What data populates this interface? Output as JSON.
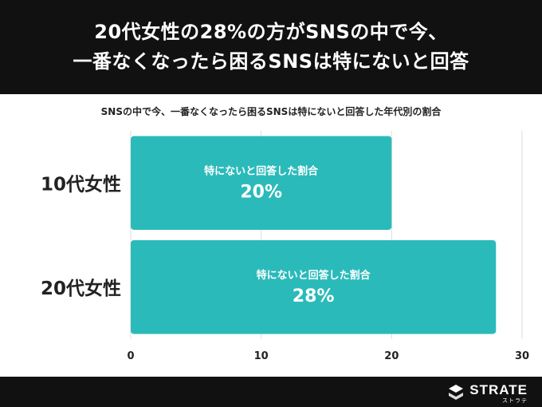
{
  "header": {
    "title_line1": "20代女性の28%の方がSNSの中で今、",
    "title_line2": "一番なくなったら困るSNSは特にないと回答"
  },
  "chart_data": {
    "type": "bar",
    "orientation": "horizontal",
    "title": "SNSの中で今、一番なくなったら困るSNSは特にないと回答した年代別の割合",
    "categories": [
      "10代女性",
      "20代女性"
    ],
    "values": [
      20,
      28
    ],
    "value_labels": [
      "20%",
      "28%"
    ],
    "bar_label": "特にないと回答した割合",
    "xlim": [
      0,
      30
    ],
    "x_ticks": [
      "0",
      "10",
      "20",
      "30"
    ],
    "grid": true,
    "bar_color": "#2BBABA"
  },
  "footer": {
    "brand": "STRATE",
    "brand_kana": "ストラテ"
  }
}
